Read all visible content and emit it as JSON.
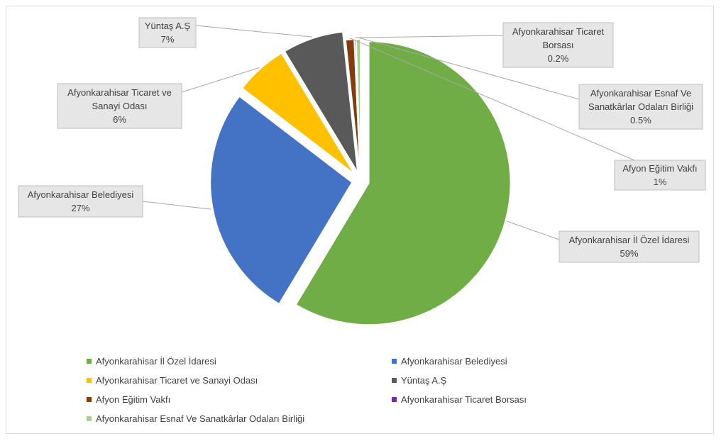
{
  "chart_data": {
    "type": "pie",
    "title": "",
    "categories": [
      "Afyonkarahisar İl Özel İdaresi",
      "Afyonkarahisar Belediyesi",
      "Afyonkarahisar Ticaret ve Sanayi Odası",
      "Yüntaş A.Ş",
      "Afyon Eğitim Vakfı",
      "Afyonkarahisar Ticaret Borsası",
      "Afyonkarahisar Esnaf Ve Sanatkârlar Odaları Birliği"
    ],
    "values": [
      59,
      27,
      6,
      7,
      1,
      0.2,
      0.5
    ],
    "value_labels": [
      "59%",
      "27%",
      "6%",
      "7%",
      "1%",
      "0.2%",
      "0.5%"
    ],
    "callout_lines": [
      [
        "Afyonkarahisar İl Özel İdaresi"
      ],
      [
        "Afyonkarahisar Belediyesi"
      ],
      [
        "Afyonkarahisar Ticaret ve",
        "Sanayi Odası"
      ],
      [
        "Yüntaş A.Ş"
      ],
      [
        "Afyon Eğitim Vakfı"
      ],
      [
        "Afyonkarahisar Ticaret",
        "Borsası"
      ],
      [
        "Afyonkarahisar Esnaf Ve",
        "Sanatkârlar Odaları Birliği"
      ]
    ],
    "colors": [
      "#70ad47",
      "#4472c4",
      "#ffc000",
      "#595959",
      "#843c0c",
      "#7030a0",
      "#a9d18e"
    ],
    "legend_position": "bottom"
  }
}
